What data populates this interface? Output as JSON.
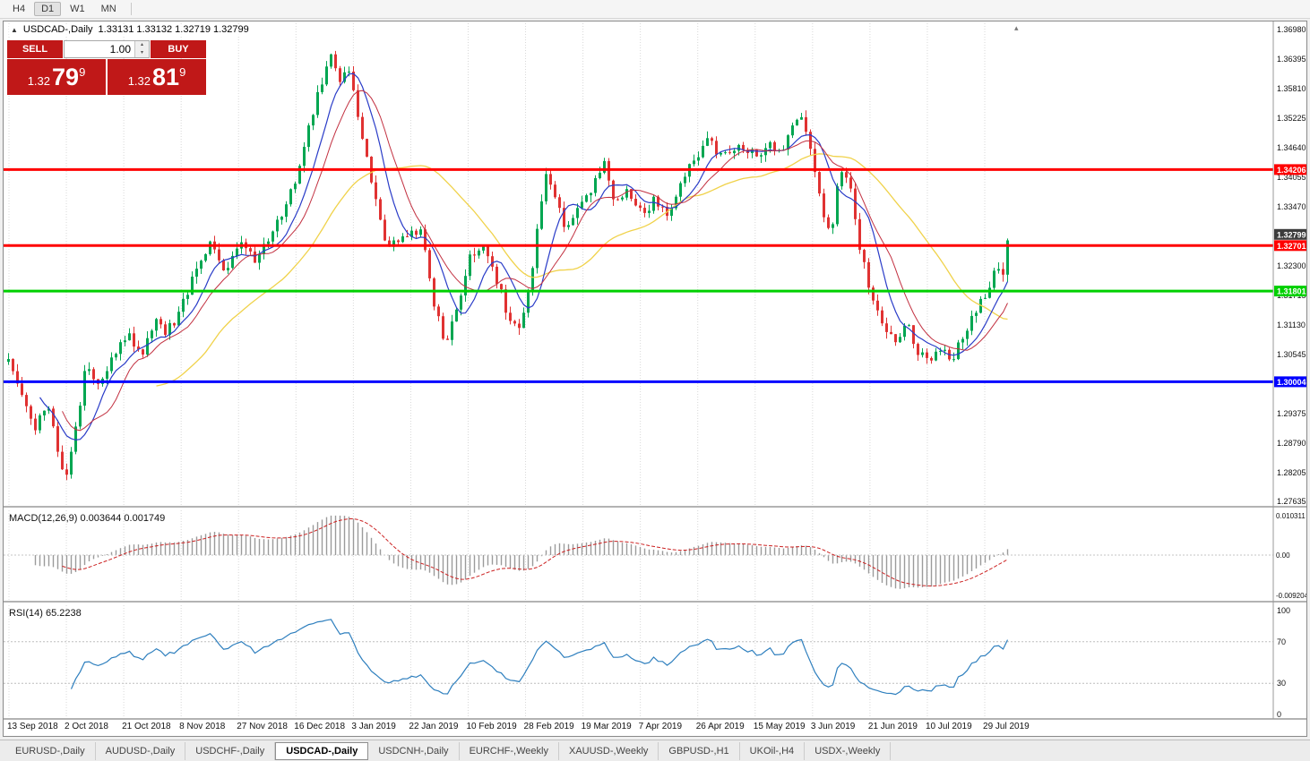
{
  "toolbar": {
    "timeframes": [
      {
        "label": "H4",
        "active": false
      },
      {
        "label": "D1",
        "active": true
      },
      {
        "label": "W1",
        "active": false
      },
      {
        "label": "MN",
        "active": false
      }
    ]
  },
  "header": {
    "symbol": "USDCAD-,Daily",
    "ohlc": "1.33131 1.33132 1.32719 1.32799"
  },
  "one_click": {
    "sell_label": "SELL",
    "buy_label": "BUY",
    "volume": "1.00",
    "sell_price": {
      "base": "1.32",
      "big": "79",
      "sup": "9"
    },
    "buy_price": {
      "base": "1.32",
      "big": "81",
      "sup": "9"
    }
  },
  "chart_data": {
    "type": "candlestick",
    "symbol": "USDCAD",
    "timeframe": "Daily",
    "price_axis_labels": [
      "1.36980",
      "1.36395",
      "1.35810",
      "1.35225",
      "1.34640",
      "1.34055",
      "1.33470",
      "1.32885",
      "1.32300",
      "1.31715",
      "1.31130",
      "1.30545",
      "1.29960",
      "1.29375",
      "1.28790",
      "1.28205",
      "1.27635"
    ],
    "date_labels": [
      "13 Sep 2018",
      "2 Oct 2018",
      "21 Oct 2018",
      "8 Nov 2018",
      "27 Nov 2018",
      "16 Dec 2018",
      "3 Jan 2019",
      "22 Jan 2019",
      "10 Feb 2019",
      "28 Feb 2019",
      "19 Mar 2019",
      "7 Apr 2019",
      "26 Apr 2019",
      "15 May 2019",
      "3 Jun 2019",
      "21 Jun 2019",
      "10 Jul 2019",
      "29 Jul 2019"
    ],
    "hlines": [
      {
        "price": 1.34206,
        "label": "1.34206",
        "color": "#ff0000"
      },
      {
        "price": 1.32701,
        "label": "1.32701",
        "color": "#ff0000"
      },
      {
        "price": 1.31801,
        "label": "1.31801",
        "color": "#00d000"
      },
      {
        "price": 1.30004,
        "label": "1.30004",
        "color": "#0000ff"
      }
    ],
    "current_price": {
      "value": 1.32799,
      "label": "1.32799",
      "color": "#3c3c3c"
    },
    "price_anchors": [
      [
        4,
        1.304
      ],
      [
        18,
        1.298
      ],
      [
        32,
        1.2905
      ],
      [
        48,
        1.295
      ],
      [
        62,
        1.285
      ],
      [
        68,
        1.28
      ],
      [
        78,
        1.2905
      ],
      [
        92,
        1.304
      ],
      [
        106,
        1.2985
      ],
      [
        122,
        1.3055
      ],
      [
        138,
        1.309
      ],
      [
        152,
        1.305
      ],
      [
        168,
        1.3115
      ],
      [
        182,
        1.31
      ],
      [
        198,
        1.315
      ],
      [
        212,
        1.322
      ],
      [
        230,
        1.328
      ],
      [
        246,
        1.32
      ],
      [
        262,
        1.329
      ],
      [
        278,
        1.3235
      ],
      [
        292,
        1.328
      ],
      [
        306,
        1.332
      ],
      [
        322,
        1.339
      ],
      [
        336,
        1.348
      ],
      [
        348,
        1.356
      ],
      [
        358,
        1.3615
      ],
      [
        366,
        1.365
      ],
      [
        374,
        1.3595
      ],
      [
        382,
        1.364
      ],
      [
        392,
        1.3545
      ],
      [
        402,
        1.345
      ],
      [
        412,
        1.338
      ],
      [
        422,
        1.3285
      ],
      [
        436,
        1.327
      ],
      [
        452,
        1.3295
      ],
      [
        466,
        1.33
      ],
      [
        476,
        1.317
      ],
      [
        492,
        1.3075
      ],
      [
        506,
        1.315
      ],
      [
        518,
        1.325
      ],
      [
        532,
        1.327
      ],
      [
        546,
        1.322
      ],
      [
        558,
        1.315
      ],
      [
        576,
        1.3095
      ],
      [
        586,
        1.32
      ],
      [
        596,
        1.332
      ],
      [
        605,
        1.343
      ],
      [
        616,
        1.335
      ],
      [
        628,
        1.33
      ],
      [
        642,
        1.335
      ],
      [
        656,
        1.339
      ],
      [
        670,
        1.343
      ],
      [
        682,
        1.335
      ],
      [
        696,
        1.338
      ],
      [
        712,
        1.334
      ],
      [
        726,
        1.336
      ],
      [
        742,
        1.333
      ],
      [
        756,
        1.341
      ],
      [
        772,
        1.345
      ],
      [
        786,
        1.348
      ],
      [
        797,
        1.344
      ],
      [
        812,
        1.346
      ],
      [
        826,
        1.347
      ],
      [
        841,
        1.344
      ],
      [
        852,
        1.348
      ],
      [
        866,
        1.345
      ],
      [
        881,
        1.3505
      ],
      [
        892,
        1.352
      ],
      [
        902,
        1.344
      ],
      [
        912,
        1.335
      ],
      [
        922,
        1.328
      ],
      [
        932,
        1.342
      ],
      [
        944,
        1.338
      ],
      [
        956,
        1.325
      ],
      [
        966,
        1.318
      ],
      [
        981,
        1.3105
      ],
      [
        996,
        1.308
      ],
      [
        1006,
        1.312
      ],
      [
        1016,
        1.306
      ],
      [
        1031,
        1.304
      ],
      [
        1046,
        1.3065
      ],
      [
        1056,
        1.304
      ],
      [
        1066,
        1.308
      ],
      [
        1076,
        1.311
      ],
      [
        1086,
        1.315
      ],
      [
        1096,
        1.318
      ],
      [
        1106,
        1.3225
      ],
      [
        1113,
        1.32
      ],
      [
        1119,
        1.3285
      ]
    ],
    "colors": {
      "up": "#00a651",
      "down": "#e03232",
      "ma_fast": "#2a3cc8",
      "ma_mid": "#c23040",
      "ma_slow": "#f0d24a",
      "macd_hist": "#9b9b9b",
      "macd_signal": "#cc2222",
      "rsi": "#2e7fbe"
    },
    "macd": {
      "label": "MACD(12,26,9) 0.003644 0.001749",
      "axis_labels": [
        "0.010311",
        "0.00",
        "-0.009204"
      ]
    },
    "rsi": {
      "label": "RSI(14) 65.2238",
      "axis_labels": [
        "100",
        "70",
        "30",
        "0"
      ],
      "levels": [
        70,
        30
      ]
    }
  },
  "tabs": [
    {
      "label": "EURUSD-,Daily",
      "active": false
    },
    {
      "label": "AUDUSD-,Daily",
      "active": false
    },
    {
      "label": "USDCHF-,Daily",
      "active": false
    },
    {
      "label": "USDCAD-,Daily",
      "active": true
    },
    {
      "label": "USDCNH-,Daily",
      "active": false
    },
    {
      "label": "EURCHF-,Weekly",
      "active": false
    },
    {
      "label": "XAUUSD-,Weekly",
      "active": false
    },
    {
      "label": "GBPUSD-,H1",
      "active": false
    },
    {
      "label": "UKOil-,H4",
      "active": false
    },
    {
      "label": "USDX-,Weekly",
      "active": false
    }
  ]
}
